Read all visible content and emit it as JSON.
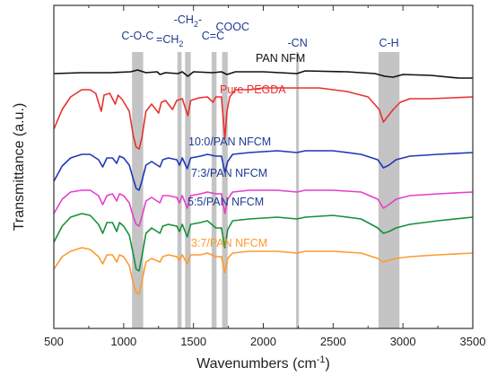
{
  "chart_data": {
    "type": "line",
    "title": "",
    "xlabel": "Wavenumbers (cm",
    "xlabel_sup": "-1",
    "xlabel_tail": ")",
    "ylabel": "Transmittance (a.u.)",
    "xlim": [
      500,
      3500
    ],
    "x_ticks": [
      "500",
      "1000",
      "1500",
      "2000",
      "2500",
      "3000",
      "3500"
    ],
    "y_ticks_labeled": false,
    "grid": false,
    "band_labels": [
      {
        "label": "C-O-C",
        "x": 1100
      },
      {
        "label": "=CH",
        "sub": "2",
        "x": 1330
      },
      {
        "label": "-CH",
        "sub": "2",
        "tail": "-",
        "x": 1460
      },
      {
        "label": "C=C",
        "x": 1640
      },
      {
        "label": "COOC",
        "x": 1780
      },
      {
        "label": "-CN",
        "x": 2245
      },
      {
        "label": "C-H",
        "x": 2900
      }
    ],
    "bands": [
      {
        "from": 1060,
        "to": 1140
      },
      {
        "from": 1385,
        "to": 1415
      },
      {
        "from": 1440,
        "to": 1480
      },
      {
        "from": 1630,
        "to": 1665
      },
      {
        "from": 1705,
        "to": 1745
      },
      {
        "from": 2235,
        "to": 2255
      },
      {
        "from": 2825,
        "to": 2975
      }
    ],
    "series": [
      {
        "name": "PAN NFM",
        "color": "#111111",
        "label_color": "#111111",
        "offset": 76,
        "points": [
          [
            500,
            6
          ],
          [
            700,
            5
          ],
          [
            900,
            5
          ],
          [
            1050,
            4
          ],
          [
            1100,
            2
          ],
          [
            1160,
            5
          ],
          [
            1240,
            4
          ],
          [
            1260,
            7
          ],
          [
            1300,
            5
          ],
          [
            1390,
            6
          ],
          [
            1420,
            4
          ],
          [
            1460,
            9
          ],
          [
            1500,
            4
          ],
          [
            1640,
            5
          ],
          [
            1700,
            4
          ],
          [
            1740,
            7
          ],
          [
            1800,
            4
          ],
          [
            2000,
            4
          ],
          [
            2240,
            6
          ],
          [
            2300,
            3
          ],
          [
            2600,
            4
          ],
          [
            2800,
            6
          ],
          [
            2870,
            9
          ],
          [
            2930,
            10
          ],
          [
            3000,
            7
          ],
          [
            3200,
            8
          ],
          [
            3400,
            11
          ],
          [
            3500,
            11
          ]
        ]
      },
      {
        "name": "Pure PEGDA",
        "color": "#e8312f",
        "label_color": "#e8312f",
        "offset": 144,
        "points": [
          [
            500,
            0
          ],
          [
            560,
            -22
          ],
          [
            620,
            -36
          ],
          [
            700,
            -44
          ],
          [
            760,
            -44
          ],
          [
            800,
            -40
          ],
          [
            840,
            -20
          ],
          [
            860,
            -38
          ],
          [
            900,
            -40
          ],
          [
            940,
            -28
          ],
          [
            960,
            -38
          ],
          [
            990,
            -33
          ],
          [
            1040,
            -20
          ],
          [
            1070,
            8
          ],
          [
            1090,
            20
          ],
          [
            1110,
            22
          ],
          [
            1130,
            10
          ],
          [
            1160,
            -20
          ],
          [
            1200,
            -28
          ],
          [
            1250,
            -18
          ],
          [
            1270,
            -30
          ],
          [
            1300,
            -32
          ],
          [
            1350,
            -22
          ],
          [
            1380,
            -32
          ],
          [
            1420,
            -34
          ],
          [
            1460,
            -15
          ],
          [
            1480,
            -32
          ],
          [
            1540,
            -35
          ],
          [
            1600,
            -36
          ],
          [
            1640,
            -30
          ],
          [
            1660,
            -36
          ],
          [
            1700,
            -36
          ],
          [
            1725,
            10
          ],
          [
            1740,
            -20
          ],
          [
            1760,
            -36
          ],
          [
            1800,
            -44
          ],
          [
            1900,
            -44
          ],
          [
            2000,
            -46
          ],
          [
            2200,
            -46
          ],
          [
            2400,
            -46
          ],
          [
            2600,
            -42
          ],
          [
            2750,
            -36
          ],
          [
            2830,
            -22
          ],
          [
            2860,
            -8
          ],
          [
            2880,
            -12
          ],
          [
            2900,
            -16
          ],
          [
            2930,
            -22
          ],
          [
            2980,
            -30
          ],
          [
            3050,
            -34
          ],
          [
            3200,
            -34
          ],
          [
            3350,
            -35
          ],
          [
            3500,
            -36
          ]
        ]
      },
      {
        "name": "10:0/PAN NFCM",
        "color": "#1f37b8",
        "label_color": "#1f3a93",
        "offset": 190,
        "points": [
          [
            500,
            12
          ],
          [
            560,
            -5
          ],
          [
            620,
            -14
          ],
          [
            700,
            -18
          ],
          [
            760,
            -18
          ],
          [
            820,
            -12
          ],
          [
            850,
            -4
          ],
          [
            880,
            -14
          ],
          [
            920,
            -14
          ],
          [
            950,
            -8
          ],
          [
            970,
            -16
          ],
          [
            1000,
            -14
          ],
          [
            1040,
            -6
          ],
          [
            1070,
            10
          ],
          [
            1090,
            20
          ],
          [
            1110,
            22
          ],
          [
            1130,
            12
          ],
          [
            1160,
            -6
          ],
          [
            1200,
            -10
          ],
          [
            1260,
            -4
          ],
          [
            1280,
            -12
          ],
          [
            1320,
            -14
          ],
          [
            1380,
            -12
          ],
          [
            1400,
            -6
          ],
          [
            1420,
            -14
          ],
          [
            1455,
            -2
          ],
          [
            1480,
            -14
          ],
          [
            1550,
            -16
          ],
          [
            1600,
            -18
          ],
          [
            1660,
            -16
          ],
          [
            1700,
            -16
          ],
          [
            1725,
            2
          ],
          [
            1745,
            -10
          ],
          [
            1780,
            -18
          ],
          [
            1900,
            -20
          ],
          [
            2100,
            -22
          ],
          [
            2240,
            -20
          ],
          [
            2300,
            -22
          ],
          [
            2500,
            -22
          ],
          [
            2700,
            -18
          ],
          [
            2820,
            -12
          ],
          [
            2860,
            -3
          ],
          [
            2900,
            -6
          ],
          [
            2950,
            -12
          ],
          [
            3050,
            -16
          ],
          [
            3250,
            -18
          ],
          [
            3500,
            -20
          ]
        ]
      },
      {
        "name": "7:3/PAN NFCM",
        "color": "#e53fcc",
        "label_color": "#1f3a93",
        "offset": 230,
        "points": [
          [
            500,
            8
          ],
          [
            560,
            -8
          ],
          [
            620,
            -16
          ],
          [
            700,
            -18
          ],
          [
            760,
            -18
          ],
          [
            820,
            -12
          ],
          [
            850,
            -2
          ],
          [
            880,
            -12
          ],
          [
            920,
            -14
          ],
          [
            950,
            -6
          ],
          [
            970,
            -14
          ],
          [
            1000,
            -12
          ],
          [
            1040,
            -4
          ],
          [
            1070,
            12
          ],
          [
            1090,
            20
          ],
          [
            1110,
            22
          ],
          [
            1130,
            12
          ],
          [
            1160,
            -6
          ],
          [
            1200,
            -10
          ],
          [
            1260,
            -4
          ],
          [
            1280,
            -12
          ],
          [
            1320,
            -12
          ],
          [
            1380,
            -10
          ],
          [
            1400,
            -4
          ],
          [
            1420,
            -12
          ],
          [
            1455,
            2
          ],
          [
            1480,
            -12
          ],
          [
            1550,
            -14
          ],
          [
            1600,
            -16
          ],
          [
            1660,
            -14
          ],
          [
            1700,
            -14
          ],
          [
            1725,
            8
          ],
          [
            1745,
            -8
          ],
          [
            1780,
            -16
          ],
          [
            1900,
            -18
          ],
          [
            2100,
            -18
          ],
          [
            2240,
            -16
          ],
          [
            2300,
            -18
          ],
          [
            2500,
            -18
          ],
          [
            2700,
            -16
          ],
          [
            2820,
            -8
          ],
          [
            2860,
            2
          ],
          [
            2900,
            -2
          ],
          [
            2950,
            -8
          ],
          [
            3050,
            -12
          ],
          [
            3250,
            -14
          ],
          [
            3500,
            -16
          ]
        ]
      },
      {
        "name": "5:5/PAN NFCM",
        "color": "#16903a",
        "label_color": "#1f3a93",
        "offset": 266,
        "points": [
          [
            500,
            4
          ],
          [
            560,
            -14
          ],
          [
            620,
            -24
          ],
          [
            700,
            -28
          ],
          [
            760,
            -26
          ],
          [
            820,
            -16
          ],
          [
            850,
            -6
          ],
          [
            880,
            -18
          ],
          [
            920,
            -18
          ],
          [
            950,
            -8
          ],
          [
            970,
            -18
          ],
          [
            1000,
            -14
          ],
          [
            1040,
            -4
          ],
          [
            1070,
            18
          ],
          [
            1090,
            34
          ],
          [
            1110,
            36
          ],
          [
            1130,
            20
          ],
          [
            1160,
            -6
          ],
          [
            1200,
            -12
          ],
          [
            1260,
            -6
          ],
          [
            1280,
            -14
          ],
          [
            1320,
            -16
          ],
          [
            1380,
            -14
          ],
          [
            1400,
            -8
          ],
          [
            1420,
            -16
          ],
          [
            1455,
            -2
          ],
          [
            1480,
            -16
          ],
          [
            1550,
            -18
          ],
          [
            1600,
            -20
          ],
          [
            1660,
            -12
          ],
          [
            1700,
            -12
          ],
          [
            1725,
            10
          ],
          [
            1745,
            -10
          ],
          [
            1780,
            -20
          ],
          [
            1900,
            -22
          ],
          [
            2100,
            -24
          ],
          [
            2240,
            -22
          ],
          [
            2300,
            -24
          ],
          [
            2500,
            -26
          ],
          [
            2700,
            -22
          ],
          [
            2820,
            -12
          ],
          [
            2860,
            -6
          ],
          [
            2900,
            -8
          ],
          [
            2950,
            -12
          ],
          [
            3050,
            -16
          ],
          [
            3250,
            -20
          ],
          [
            3500,
            -24
          ]
        ]
      },
      {
        "name": "3:7/PAN NFCM",
        "color": "#ff9a2e",
        "label_color": "#ff9a2e",
        "offset": 296,
        "points": [
          [
            500,
            4
          ],
          [
            560,
            -10
          ],
          [
            620,
            -16
          ],
          [
            700,
            -20
          ],
          [
            760,
            -18
          ],
          [
            820,
            -10
          ],
          [
            850,
            -2
          ],
          [
            880,
            -12
          ],
          [
            920,
            -12
          ],
          [
            950,
            -4
          ],
          [
            970,
            -12
          ],
          [
            1000,
            -10
          ],
          [
            1040,
            0
          ],
          [
            1070,
            20
          ],
          [
            1090,
            30
          ],
          [
            1110,
            32
          ],
          [
            1130,
            18
          ],
          [
            1160,
            -4
          ],
          [
            1200,
            -8
          ],
          [
            1260,
            -4
          ],
          [
            1280,
            -10
          ],
          [
            1320,
            -12
          ],
          [
            1380,
            -10
          ],
          [
            1400,
            -6
          ],
          [
            1420,
            -12
          ],
          [
            1455,
            -2
          ],
          [
            1480,
            -12
          ],
          [
            1550,
            -12
          ],
          [
            1600,
            -14
          ],
          [
            1660,
            -10
          ],
          [
            1700,
            -10
          ],
          [
            1725,
            8
          ],
          [
            1745,
            -8
          ],
          [
            1780,
            -14
          ],
          [
            1900,
            -16
          ],
          [
            2100,
            -16
          ],
          [
            2240,
            -14
          ],
          [
            2300,
            -16
          ],
          [
            2500,
            -16
          ],
          [
            2700,
            -14
          ],
          [
            2820,
            -8
          ],
          [
            2860,
            -4
          ],
          [
            2900,
            -6
          ],
          [
            2950,
            -8
          ],
          [
            3050,
            -10
          ],
          [
            3250,
            -12
          ],
          [
            3500,
            -14
          ]
        ]
      }
    ]
  }
}
